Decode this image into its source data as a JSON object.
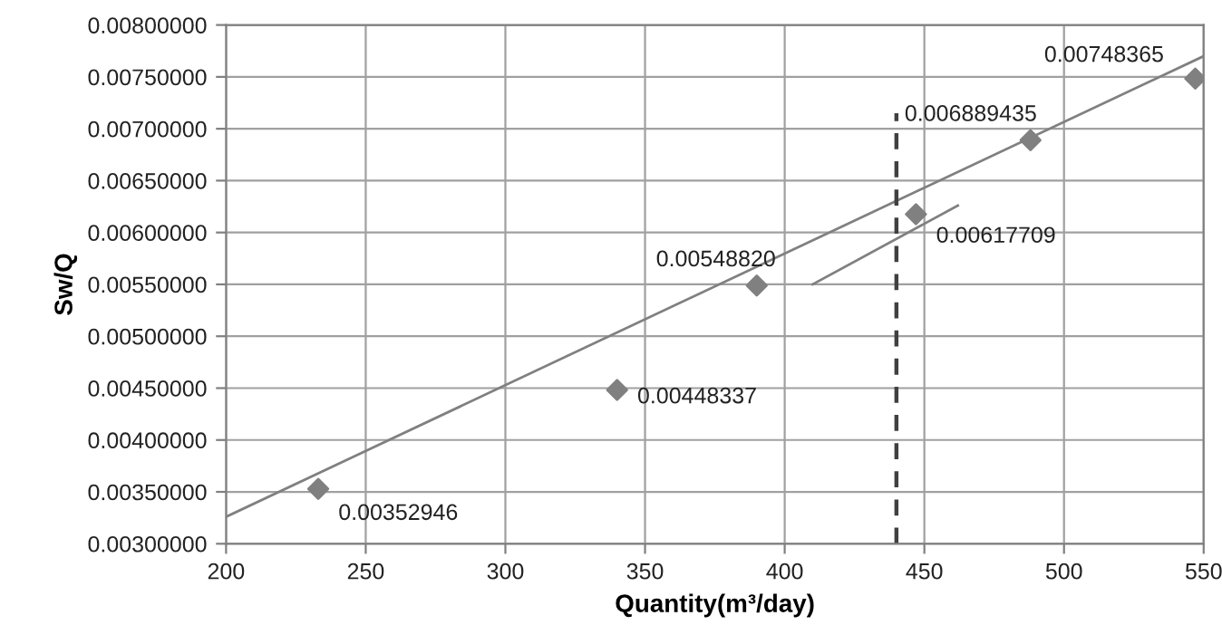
{
  "chart_data": {
    "type": "scatter",
    "xlabel": "Quantity(m³/day)",
    "ylabel": "Sw/Q",
    "xlim": [
      200,
      550
    ],
    "xticks": [
      200,
      250,
      300,
      350,
      400,
      450,
      500,
      550
    ],
    "ylim": [
      0.003,
      0.008
    ],
    "yticks": [
      {
        "value": 0.003,
        "label": "0.00300000"
      },
      {
        "value": 0.0035,
        "label": "0.00350000"
      },
      {
        "value": 0.004,
        "label": "0.00400000"
      },
      {
        "value": 0.0045,
        "label": "0.00450000"
      },
      {
        "value": 0.005,
        "label": "0.00500000"
      },
      {
        "value": 0.0055,
        "label": "0.00550000"
      },
      {
        "value": 0.006,
        "label": "0.00600000"
      },
      {
        "value": 0.0065,
        "label": "0.00650000"
      },
      {
        "value": 0.007,
        "label": "0.00700000"
      },
      {
        "value": 0.0075,
        "label": "0.00750000"
      },
      {
        "value": 0.008,
        "label": "0.00800000"
      }
    ],
    "grid": true,
    "marker": "diamond",
    "series": [
      {
        "color": "#808080",
        "x": [
          233,
          340,
          390,
          447,
          488,
          547
        ],
        "values": [
          0.00352946,
          0.00448337,
          0.0054882,
          0.00617709,
          0.006889435,
          0.00748365
        ],
        "value_labels": [
          "0.00352946",
          "0.00448337",
          "0.00548820",
          "0.00617709",
          "0.006889435",
          "0.00748365"
        ]
      },
      {
        "type": "line",
        "color": "#808080",
        "x": [
          200,
          550
        ],
        "values": [
          0.00326,
          0.0077
        ],
        "marker": "none"
      },
      {
        "type": "line",
        "color": "#808080",
        "x": [
          410,
          462
        ],
        "values": [
          0.0055,
          0.00626
        ],
        "marker": "none"
      },
      {
        "type": "line",
        "color": "#404040",
        "x": [
          440,
          440
        ],
        "values": [
          0.003,
          0.00715
        ],
        "marker": "none",
        "line_style": "dashed"
      }
    ]
  }
}
